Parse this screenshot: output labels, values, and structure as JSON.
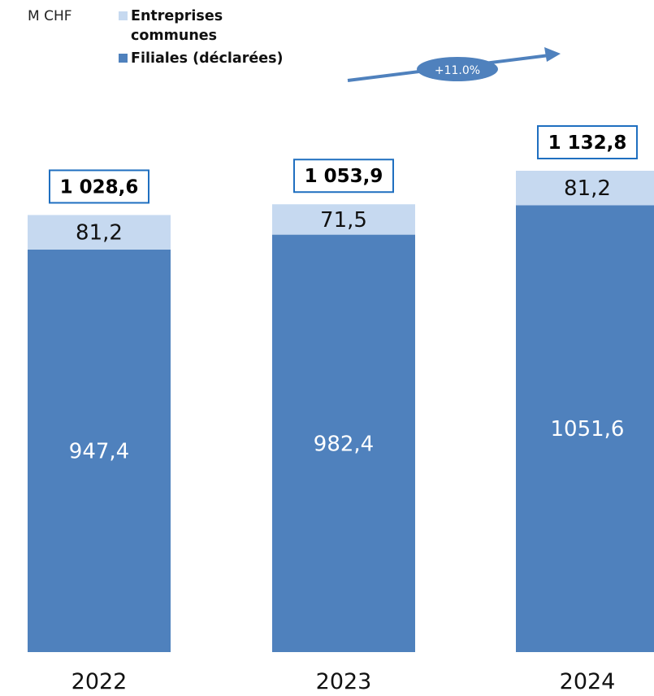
{
  "chart_data": {
    "type": "bar",
    "stacked": true,
    "unit_label": "M CHF",
    "categories": [
      "2022",
      "2023",
      "2024"
    ],
    "series": [
      {
        "name": "Filiales (déclarées)",
        "color": "#4f81bd",
        "values": [
          947.4,
          982.4,
          1051.6
        ],
        "labels": [
          "947,4",
          "982,4",
          "1051,6"
        ]
      },
      {
        "name": "Entreprises communes",
        "color": "#c6d9f0",
        "values": [
          81.2,
          71.5,
          81.2
        ],
        "labels": [
          "81,2",
          "71,5",
          "81,2"
        ]
      }
    ],
    "totals": [
      "1 028,6",
      "1 053,9",
      "1 132,8"
    ],
    "growth_annotation": "+11.0%",
    "legend_position": "top-left",
    "grid": false,
    "ylim": [
      0,
      1132.8
    ]
  }
}
